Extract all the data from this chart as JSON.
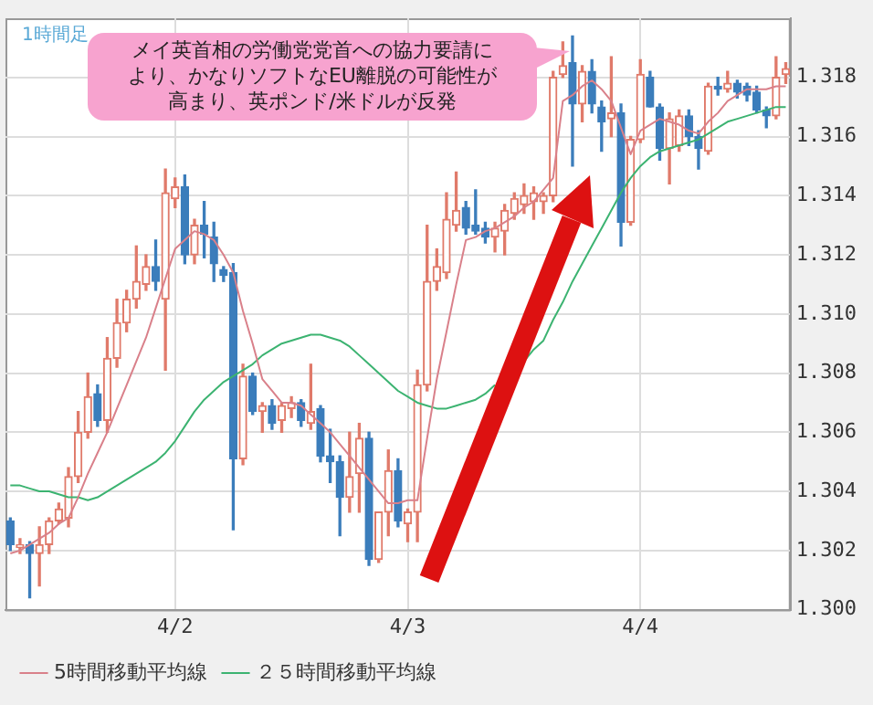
{
  "chart_data": {
    "type": "candlestick",
    "categories": [
      null,
      null,
      null,
      null,
      null,
      null,
      null,
      null,
      null,
      null,
      null,
      null,
      null,
      null,
      null,
      null,
      null,
      "4/2",
      null,
      null,
      null,
      null,
      null,
      null,
      null,
      null,
      null,
      null,
      null,
      null,
      null,
      null,
      null,
      null,
      null,
      null,
      null,
      null,
      null,
      null,
      null,
      "4/3",
      null,
      null,
      null,
      null,
      null,
      null,
      null,
      null,
      null,
      null,
      null,
      null,
      null,
      null,
      null,
      null,
      null,
      null,
      null,
      null,
      null,
      null,
      null,
      "4/4",
      null,
      null,
      null,
      null,
      null,
      null,
      null,
      null,
      null,
      null,
      null,
      null,
      null,
      null,
      null
    ],
    "ohlc": [
      [
        1.303,
        1.3031,
        1.302,
        1.3022
      ],
      [
        1.3021,
        1.3024,
        1.3019,
        1.3022
      ],
      [
        1.3022,
        1.3023,
        1.3004,
        1.3019
      ],
      [
        1.3019,
        1.3028,
        1.3008,
        1.3022
      ],
      [
        1.3022,
        1.3031,
        1.3019,
        1.303
      ],
      [
        1.303,
        1.3036,
        1.3029,
        1.3034
      ],
      [
        1.3031,
        1.3048,
        1.3028,
        1.3045
      ],
      [
        1.3045,
        1.3067,
        1.3043,
        1.306
      ],
      [
        1.306,
        1.308,
        1.3058,
        1.3072
      ],
      [
        1.3073,
        1.3076,
        1.3062,
        1.3064
      ],
      [
        1.3064,
        1.3092,
        1.306,
        1.3085
      ],
      [
        1.3085,
        1.3105,
        1.3082,
        1.3097
      ],
      [
        1.3097,
        1.3108,
        1.3094,
        1.3105
      ],
      [
        1.3105,
        1.3123,
        1.3102,
        1.3111
      ],
      [
        1.311,
        1.312,
        1.3108,
        1.3116
      ],
      [
        1.3116,
        1.3125,
        1.3108,
        1.3111
      ],
      [
        1.3105,
        1.3149,
        1.3081,
        1.3141
      ],
      [
        1.3139,
        1.3146,
        1.3136,
        1.3143
      ],
      [
        1.3143,
        1.3147,
        1.3117,
        1.312
      ],
      [
        1.312,
        1.3132,
        1.3117,
        1.313
      ],
      [
        1.313,
        1.3138,
        1.3119,
        1.3127
      ],
      [
        1.3126,
        1.3131,
        1.3111,
        1.3117
      ],
      [
        1.3115,
        1.3116,
        1.3111,
        1.3113
      ],
      [
        1.3114,
        1.3117,
        1.3027,
        1.3051
      ],
      [
        1.3051,
        1.3083,
        1.3049,
        1.3079
      ],
      [
        1.3079,
        1.308,
        1.3066,
        1.3067
      ],
      [
        1.3067,
        1.307,
        1.306,
        1.3069
      ],
      [
        1.3069,
        1.3071,
        1.3061,
        1.3063
      ],
      [
        1.3064,
        1.307,
        1.306,
        1.3069
      ],
      [
        1.3068,
        1.3072,
        1.3065,
        1.307
      ],
      [
        1.307,
        1.3071,
        1.3062,
        1.3064
      ],
      [
        1.3063,
        1.3083,
        1.3061,
        1.3067
      ],
      [
        1.3068,
        1.3069,
        1.305,
        1.3052
      ],
      [
        1.3052,
        1.3061,
        1.3043,
        1.305
      ],
      [
        1.305,
        1.3052,
        1.3025,
        1.3038
      ],
      [
        1.3038,
        1.306,
        1.3033,
        1.3045
      ],
      [
        1.3046,
        1.3063,
        1.3033,
        1.3058
      ],
      [
        1.3058,
        1.306,
        1.3015,
        1.3017
      ],
      [
        1.3017,
        1.3033,
        1.3016,
        1.3033
      ],
      [
        1.3033,
        1.3054,
        1.3025,
        1.3047
      ],
      [
        1.3047,
        1.3051,
        1.3028,
        1.303
      ],
      [
        1.3029,
        1.3034,
        1.3023,
        1.3033
      ],
      [
        1.3033,
        1.3081,
        1.3023,
        1.3076
      ],
      [
        1.3076,
        1.313,
        1.3074,
        1.3111
      ],
      [
        1.3111,
        1.3122,
        1.3108,
        1.3116
      ],
      [
        1.3114,
        1.3141,
        1.3112,
        1.3132
      ],
      [
        1.313,
        1.3148,
        1.3128,
        1.3135
      ],
      [
        1.3136,
        1.3138,
        1.3127,
        1.3129
      ],
      [
        1.313,
        1.3142,
        1.3127,
        1.3128
      ],
      [
        1.3129,
        1.3131,
        1.3124,
        1.3126
      ],
      [
        1.3126,
        1.3131,
        1.3121,
        1.3129
      ],
      [
        1.3128,
        1.3137,
        1.312,
        1.3135
      ],
      [
        1.3134,
        1.3141,
        1.3132,
        1.3139
      ],
      [
        1.3137,
        1.3144,
        1.3134,
        1.314
      ],
      [
        1.3138,
        1.3143,
        1.3132,
        1.3141
      ],
      [
        1.3138,
        1.3141,
        1.3134,
        1.314
      ],
      [
        1.314,
        1.3182,
        1.3138,
        1.318
      ],
      [
        1.3181,
        1.3192,
        1.318,
        1.3184
      ],
      [
        1.3185,
        1.3194,
        1.315,
        1.3171
      ],
      [
        1.3171,
        1.3184,
        1.3165,
        1.3182
      ],
      [
        1.3182,
        1.3186,
        1.3168,
        1.3171
      ],
      [
        1.317,
        1.3172,
        1.3155,
        1.3165
      ],
      [
        1.3166,
        1.3187,
        1.316,
        1.3168
      ],
      [
        1.3168,
        1.3171,
        1.3123,
        1.3131
      ],
      [
        1.3131,
        1.316,
        1.313,
        1.3159
      ],
      [
        1.3159,
        1.3186,
        1.3158,
        1.3181
      ],
      [
        1.318,
        1.3182,
        1.317,
        1.317
      ],
      [
        1.317,
        1.3171,
        1.3152,
        1.3156
      ],
      [
        1.3156,
        1.3168,
        1.3144,
        1.3166
      ],
      [
        1.3157,
        1.3169,
        1.3155,
        1.3167
      ],
      [
        1.3167,
        1.3169,
        1.3157,
        1.316
      ],
      [
        1.316,
        1.3162,
        1.3149,
        1.3156
      ],
      [
        1.3155,
        1.3178,
        1.3154,
        1.3177
      ],
      [
        1.3177,
        1.318,
        1.3174,
        1.3176
      ],
      [
        1.3176,
        1.3182,
        1.3175,
        1.3178
      ],
      [
        1.3178,
        1.3179,
        1.3173,
        1.3175
      ],
      [
        1.3177,
        1.3178,
        1.3172,
        1.3174
      ],
      [
        1.3175,
        1.3177,
        1.3168,
        1.3169
      ],
      [
        1.3169,
        1.317,
        1.3163,
        1.3167
      ],
      [
        1.3167,
        1.3187,
        1.3166,
        1.318
      ],
      [
        1.3181,
        1.3185,
        1.3178,
        1.3183
      ]
    ],
    "series": [
      {
        "type": "line",
        "name": "5時間移動平均線",
        "color": "#d9808a",
        "values": [
          1.3019,
          1.302,
          1.3022,
          1.3024,
          1.3026,
          1.3029,
          1.3031,
          1.3038,
          1.3046,
          1.3053,
          1.306,
          1.3068,
          1.3076,
          1.3084,
          1.3092,
          1.3102,
          1.3112,
          1.3122,
          1.3125,
          1.3128,
          1.3127,
          1.3125,
          1.312,
          1.3114,
          1.3101,
          1.309,
          1.3078,
          1.3074,
          1.307,
          1.307,
          1.3069,
          1.3066,
          1.3063,
          1.306,
          1.3056,
          1.3052,
          1.3048,
          1.3044,
          1.304,
          1.3036,
          1.3036,
          1.3037,
          1.3037,
          1.3058,
          1.3078,
          1.3094,
          1.311,
          1.3125,
          1.3126,
          1.3128,
          1.3129,
          1.3131,
          1.3133,
          1.3136,
          1.3138,
          1.3142,
          1.3146,
          1.3172,
          1.3174,
          1.3177,
          1.3179,
          1.3176,
          1.3172,
          1.3163,
          1.3154,
          1.3162,
          1.3164,
          1.3166,
          1.3165,
          1.3164,
          1.3162,
          1.3161,
          1.3165,
          1.3168,
          1.3172,
          1.3174,
          1.3176,
          1.3176,
          1.3176,
          1.3177,
          1.3177
        ]
      },
      {
        "type": "line",
        "name": "２５時間移動平均線",
        "color": "#3cb371",
        "values": [
          1.3042,
          1.3042,
          1.3041,
          1.304,
          1.304,
          1.3039,
          1.3038,
          1.3038,
          1.3037,
          1.3038,
          1.304,
          1.3042,
          1.3044,
          1.3046,
          1.3048,
          1.305,
          1.3053,
          1.3057,
          1.3062,
          1.3067,
          1.3071,
          1.3074,
          1.3077,
          1.3079,
          1.3081,
          1.3083,
          1.3086,
          1.3088,
          1.309,
          1.3091,
          1.3092,
          1.3093,
          1.3093,
          1.3092,
          1.3091,
          1.3089,
          1.3086,
          1.3083,
          1.308,
          1.3077,
          1.3074,
          1.3072,
          1.307,
          1.3069,
          1.3068,
          1.3068,
          1.3069,
          1.307,
          1.3071,
          1.3073,
          1.3076,
          null,
          null,
          1.3084,
          1.3088,
          1.3091,
          1.3098,
          1.3104,
          1.3111,
          1.3117,
          1.3123,
          1.3129,
          1.3135,
          1.3141,
          1.3146,
          1.315,
          1.3153,
          1.3155,
          1.3156,
          1.3157,
          1.3158,
          1.3159,
          1.3161,
          1.3163,
          1.3165,
          1.3166,
          1.3167,
          1.3168,
          1.3169,
          1.317,
          1.317
        ]
      }
    ],
    "ylim": [
      1.3,
      1.32
    ],
    "yticks": [
      {
        "value": 1.3,
        "label": "1.300"
      },
      {
        "value": 1.302,
        "label": "1.302"
      },
      {
        "value": 1.304,
        "label": "1.304"
      },
      {
        "value": 1.306,
        "label": "1.306"
      },
      {
        "value": 1.308,
        "label": "1.308"
      },
      {
        "value": 1.31,
        "label": "1.310"
      },
      {
        "value": 1.312,
        "label": "1.312"
      },
      {
        "value": 1.314,
        "label": "1.314"
      },
      {
        "value": 1.316,
        "label": "1.316"
      },
      {
        "value": 1.318,
        "label": "1.318"
      }
    ],
    "grid": true,
    "legend": "bottom",
    "annotations": [
      "1時間足",
      "メイ英首相の労働党党首への協力要請により、かなりソフトなEU離脱の可能性が高まり、英ポンド/米ドルが反発"
    ]
  }
}
